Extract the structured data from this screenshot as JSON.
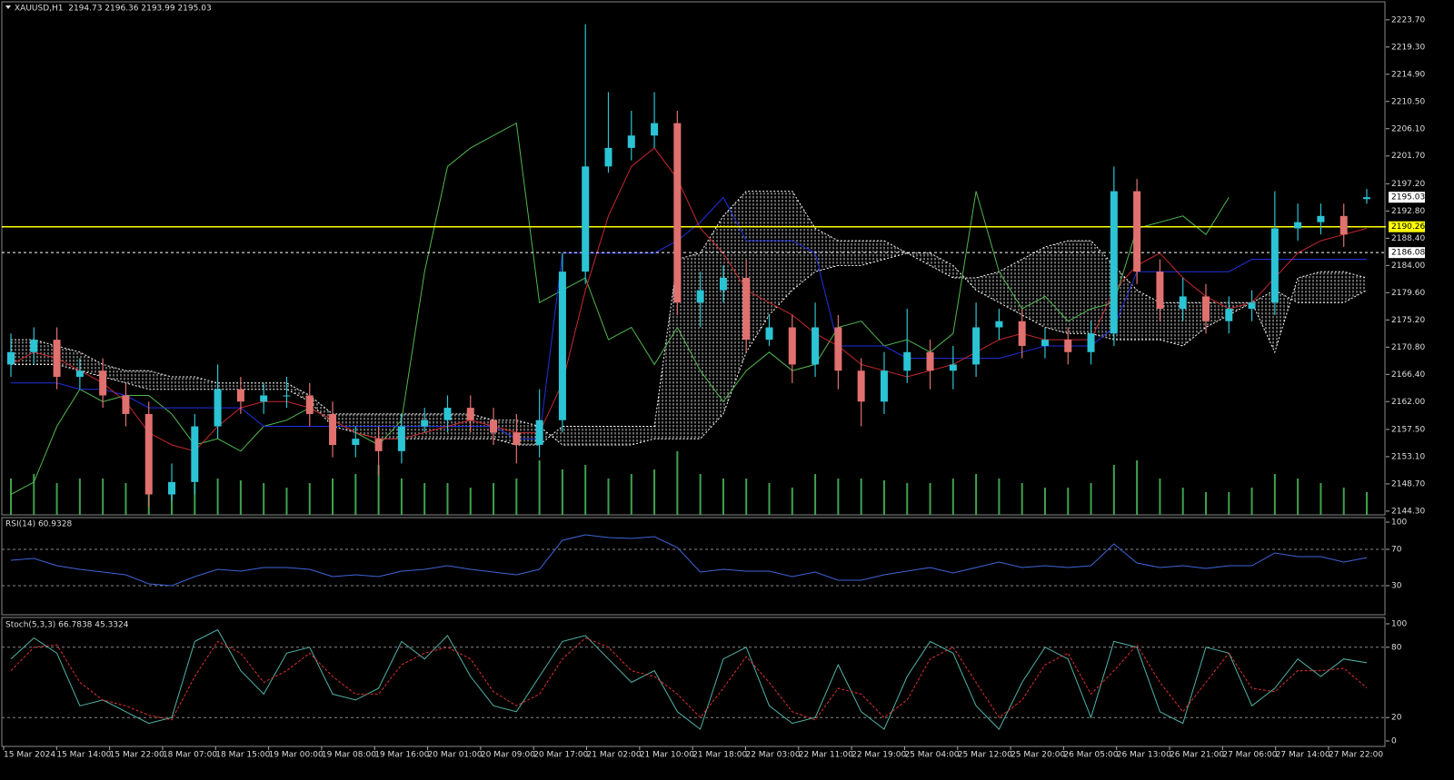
{
  "chart_data": [
    {
      "type": "candlestick",
      "title": "XAUUSD,H1  2194.73 2196.36 2193.99 2195.03",
      "up_color": "#2bc4d4",
      "down_color": "#e0716f",
      "open": [
        2168,
        2170,
        2172,
        2166,
        2167,
        2163,
        2160,
        2147,
        2149,
        2158,
        2164,
        2162,
        2163,
        2163,
        2160,
        2155,
        2156,
        2154,
        2158,
        2159,
        2161,
        2159,
        2157,
        2155,
        2159,
        2183,
        2200,
        2203,
        2205,
        2207,
        2178,
        2180,
        2182,
        2172,
        2174,
        2168,
        2174,
        2167,
        2162,
        2167,
        2170,
        2167,
        2168,
        2174,
        2175,
        2171,
        2172,
        2170,
        2173,
        2196,
        2183,
        2177,
        2179,
        2175,
        2177,
        2178,
        2190,
        2191,
        2192,
        2194.73
      ],
      "high": [
        2173,
        2174,
        2174,
        2169,
        2169,
        2165,
        2162,
        2152,
        2160,
        2168,
        2166,
        2165,
        2166,
        2165,
        2162,
        2158,
        2158,
        2160,
        2161,
        2163,
        2163,
        2161,
        2160,
        2164,
        2186,
        2223,
        2212,
        2209,
        2212,
        2209,
        2183,
        2184,
        2185,
        2176,
        2176,
        2178,
        2176,
        2169,
        2170,
        2177,
        2172,
        2171,
        2178,
        2177,
        2177,
        2174,
        2174,
        2175,
        2200,
        2198,
        2185,
        2182,
        2181,
        2179,
        2180,
        2196,
        2194,
        2194,
        2194,
        2196.36
      ],
      "low": [
        2166,
        2168,
        2164,
        2164,
        2161,
        2158,
        2145,
        2146,
        2147,
        2156,
        2160,
        2160,
        2161,
        2158,
        2153,
        2153,
        2150,
        2152,
        2157,
        2157,
        2157,
        2155,
        2152,
        2153,
        2157,
        2181,
        2199,
        2201,
        2203,
        2176,
        2174,
        2178,
        2170,
        2171,
        2165,
        2166,
        2164,
        2158,
        2160,
        2165,
        2164,
        2164,
        2166,
        2172,
        2169,
        2169,
        2168,
        2168,
        2171,
        2181,
        2175,
        2175,
        2173,
        2173,
        2175,
        2176,
        2188,
        2189,
        2187,
        2193.99
      ],
      "close": [
        2170,
        2172,
        2166,
        2167,
        2163,
        2160,
        2147,
        2149,
        2158,
        2164,
        2162,
        2163,
        2163,
        2160,
        2155,
        2156,
        2154,
        2158,
        2159,
        2161,
        2159,
        2157,
        2155,
        2159,
        2183,
        2200,
        2203,
        2205,
        2207,
        2178,
        2180,
        2182,
        2172,
        2174,
        2168,
        2174,
        2167,
        2162,
        2167,
        2170,
        2167,
        2168,
        2174,
        2175,
        2171,
        2172,
        2170,
        2173,
        2196,
        2183,
        2177,
        2179,
        2175,
        2177,
        2178,
        2190,
        2191,
        2192,
        2189,
        2195.03
      ],
      "ylim": [
        2143.7,
        2226.9
      ],
      "yticks": [
        {
          "value": 2223.7,
          "label": "2223.70"
        },
        {
          "value": 2219.3,
          "label": "2219.30"
        },
        {
          "value": 2214.9,
          "label": "2214.90"
        },
        {
          "value": 2210.5,
          "label": "2210.50"
        },
        {
          "value": 2206.1,
          "label": "2206.10"
        },
        {
          "value": 2201.7,
          "label": "2201.70"
        },
        {
          "value": 2197.2,
          "label": "2197.20"
        },
        {
          "value": 2192.8,
          "label": "2192.80"
        },
        {
          "value": 2188.4,
          "label": "2188.40"
        },
        {
          "value": 2184,
          "label": "2184.00"
        },
        {
          "value": 2179.6,
          "label": "2179.60"
        },
        {
          "value": 2175.2,
          "label": "2175.20"
        },
        {
          "value": 2170.8,
          "label": "2170.80"
        },
        {
          "value": 2166.4,
          "label": "2166.40"
        },
        {
          "value": 2162,
          "label": "2162.00"
        },
        {
          "value": 2157.5,
          "label": "2157.50"
        },
        {
          "value": 2153.1,
          "label": "2153.10"
        },
        {
          "value": 2148.7,
          "label": "2148.70"
        },
        {
          "value": 2144.3,
          "label": "2144.30"
        }
      ],
      "levels": [
        {
          "value": 2190.26,
          "label": "2190.26",
          "color": "#ffff00",
          "dashed": false
        },
        {
          "value": 2186.08,
          "label": "2186.08",
          "color": "#ffffff",
          "dashed": true
        }
      ],
      "last_price": {
        "value": 2195.03,
        "label": "2195.03"
      },
      "volume": {
        "color": "#3fa34d",
        "ylim": [
          0,
          100
        ],
        "values": [
          40,
          45,
          35,
          40,
          40,
          35,
          30,
          30,
          35,
          40,
          38,
          35,
          30,
          35,
          40,
          45,
          55,
          40,
          35,
          35,
          30,
          35,
          40,
          60,
          50,
          55,
          40,
          45,
          50,
          70,
          45,
          40,
          40,
          35,
          30,
          45,
          40,
          40,
          38,
          35,
          35,
          40,
          45,
          40,
          35,
          30,
          30,
          35,
          55,
          60,
          40,
          30,
          25,
          25,
          30,
          45,
          40,
          35,
          30,
          25
        ]
      },
      "tenkan": {
        "color": "#c8282e",
        "values": [
          2168,
          2170,
          2169,
          2167,
          2165,
          2162,
          2157,
          2155,
          2154,
          2158,
          2161,
          2162,
          2162,
          2161,
          2159,
          2157,
          2156,
          2156,
          2157,
          2158,
          2159,
          2158,
          2157,
          2157,
          2165,
          2180,
          2192,
          2200,
          2203,
          2198,
          2190,
          2186,
          2180,
          2178,
          2176,
          2173,
          2171,
          2168,
          2167,
          2166,
          2167,
          2168,
          2170,
          2172,
          2173,
          2172,
          2172,
          2172,
          2180,
          2184,
          2186,
          2182,
          2179,
          2177,
          2178,
          2182,
          2186,
          2188,
          2189,
          2190
        ]
      },
      "kijun": {
        "color": "#2030e0",
        "values": [
          2165,
          2165,
          2165,
          2164,
          2164,
          2163,
          2161,
          2161,
          2161,
          2161,
          2161,
          2158,
          2158,
          2158,
          2158,
          2158,
          2158,
          2158,
          2158,
          2158,
          2158,
          2158,
          2156,
          2156,
          2186,
          2186,
          2186,
          2186,
          2186,
          2188,
          2191,
          2195,
          2188,
          2188,
          2188,
          2186,
          2171,
          2171,
          2171,
          2169,
          2169,
          2169,
          2169,
          2169,
          2170,
          2171,
          2171,
          2171,
          2174,
          2183,
          2183,
          2183,
          2183,
          2183,
          2185,
          2185,
          2185,
          2185,
          2185,
          2185
        ]
      },
      "chikou": {
        "color": "#4fb84f",
        "values": [
          2147,
          2149,
          2158,
          2164,
          2162,
          2163,
          2163,
          2160,
          2155,
          2156,
          2154,
          2158,
          2159,
          2161,
          2159,
          2157,
          2155,
          2159,
          2183,
          2200,
          2203,
          2205,
          2207,
          2178,
          2180,
          2182,
          2172,
          2174,
          2168,
          2174,
          2167,
          2162,
          2167,
          2170,
          2167,
          2168,
          2174,
          2175,
          2171,
          2172,
          2170,
          2173,
          2196,
          2183,
          2177,
          2179,
          2175,
          2177,
          2178,
          2190,
          2191,
          2192,
          2189,
          2195.03,
          null,
          null,
          null,
          null,
          null,
          null
        ]
      },
      "span_a": {
        "color": "#ffffff",
        "values": [
          2172,
          2172,
          2171,
          2170,
          2168,
          2167,
          2167,
          2166,
          2166,
          2165,
          2165,
          2165,
          2165,
          2163,
          2160,
          2160,
          2160,
          2160,
          2160,
          2160,
          2160,
          2159,
          2159,
          2158,
          2155,
          2155,
          2155,
          2155,
          2156,
          2156,
          2156,
          2160,
          2170,
          2176,
          2180,
          2183,
          2184,
          2184,
          2185,
          2186,
          2186,
          2184,
          2180,
          2178,
          2176,
          2174,
          2173,
          2173,
          2172,
          2172,
          2172,
          2171,
          2174,
          2176,
          2178,
          2170,
          2182,
          2183,
          2183,
          2182
        ]
      },
      "span_b": {
        "color": "#ffffff",
        "values": [
          2168,
          2168,
          2168,
          2167,
          2166,
          2165,
          2164,
          2164,
          2164,
          2164,
          2164,
          2164,
          2164,
          2162,
          2158,
          2157,
          2156,
          2156,
          2156,
          2156,
          2156,
          2156,
          2155,
          2155,
          2158,
          2158,
          2158,
          2158,
          2158,
          2185,
          2186,
          2192,
          2196,
          2196,
          2196,
          2190,
          2188,
          2188,
          2188,
          2186,
          2184,
          2182,
          2182,
          2183,
          2185,
          2187,
          2188,
          2188,
          2184,
          2180,
          2178,
          2178,
          2178,
          2178,
          2178,
          2180,
          2178,
          2178,
          2178,
          2180
        ]
      }
    },
    {
      "type": "line",
      "title": "RSI(14) 60.9328",
      "ylim": [
        0,
        100
      ],
      "yticks": [
        100,
        70,
        30
      ],
      "series": [
        {
          "color": "#3f64d8",
          "values": [
            58,
            60,
            52,
            48,
            45,
            42,
            32,
            30,
            40,
            48,
            46,
            50,
            50,
            48,
            40,
            42,
            40,
            46,
            48,
            52,
            48,
            45,
            42,
            48,
            80,
            86,
            83,
            82,
            84,
            72,
            45,
            48,
            46,
            46,
            40,
            45,
            36,
            36,
            42,
            46,
            50,
            44,
            50,
            56,
            50,
            52,
            50,
            52,
            76,
            55,
            50,
            52,
            49,
            52,
            52,
            66,
            62,
            62,
            56,
            60.93
          ]
        }
      ]
    },
    {
      "type": "line",
      "title": "Stoch(5,3,3) 66.7838 45.3324",
      "ylim": [
        0,
        100
      ],
      "yticks": [
        100,
        80,
        20,
        0
      ],
      "series": [
        {
          "color": "#4fb3a8",
          "dashed": false,
          "values": [
            70,
            88,
            75,
            30,
            35,
            25,
            15,
            20,
            85,
            95,
            60,
            40,
            75,
            80,
            40,
            35,
            45,
            85,
            70,
            90,
            55,
            30,
            25,
            55,
            85,
            90,
            70,
            50,
            60,
            25,
            10,
            70,
            80,
            30,
            15,
            20,
            65,
            25,
            10,
            55,
            85,
            75,
            30,
            10,
            50,
            80,
            70,
            20,
            85,
            80,
            25,
            15,
            80,
            75,
            30,
            45,
            70,
            55,
            70,
            66.78
          ]
        },
        {
          "color": "#e03030",
          "dashed": true,
          "values": [
            60,
            80,
            82,
            50,
            35,
            30,
            22,
            18,
            55,
            85,
            75,
            50,
            60,
            75,
            55,
            40,
            40,
            65,
            75,
            80,
            70,
            42,
            30,
            40,
            70,
            88,
            80,
            60,
            55,
            40,
            20,
            45,
            72,
            50,
            25,
            18,
            45,
            40,
            20,
            35,
            70,
            80,
            50,
            20,
            35,
            65,
            75,
            40,
            60,
            82,
            50,
            25,
            50,
            75,
            45,
            42,
            60,
            60,
            62,
            45.33
          ]
        }
      ]
    }
  ],
  "time_axis": {
    "labels": [
      "15 Mar 2024",
      "15 Mar 14:00",
      "15 Mar 22:00",
      "18 Mar 07:00",
      "18 Mar 15:00",
      "19 Mar 00:00",
      "19 Mar 08:00",
      "19 Mar 16:00",
      "20 Mar 01:00",
      "20 Mar 09:00",
      "20 Mar 17:00",
      "21 Mar 02:00",
      "21 Mar 10:00",
      "21 Mar 18:00",
      "22 Mar 03:00",
      "22 Mar 11:00",
      "22 Mar 19:00",
      "25 Mar 04:00",
      "25 Mar 12:00",
      "25 Mar 20:00",
      "26 Mar 05:00",
      "26 Mar 13:00",
      "26 Mar 21:00",
      "27 Mar 06:00",
      "27 Mar 14:00",
      "27 Mar 22:00"
    ]
  }
}
